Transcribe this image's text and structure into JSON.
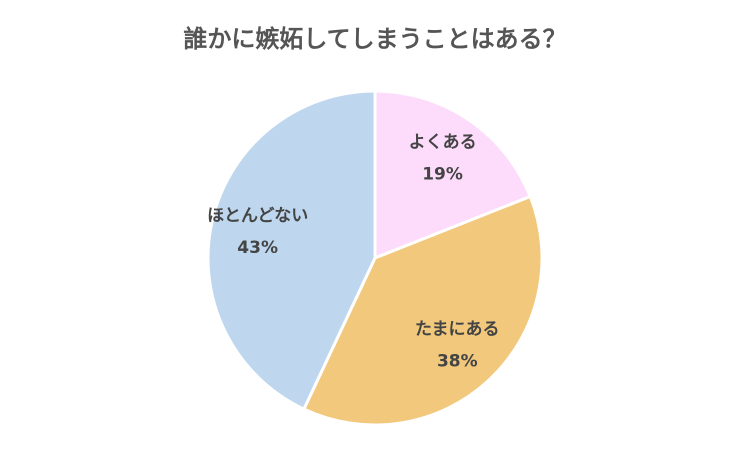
{
  "chart_data": {
    "type": "pie",
    "title": "誰かに嫉妬してしまうことはある？",
    "categories": [
      "よくある",
      "たまにある",
      "ほとんどない"
    ],
    "values": [
      19,
      38,
      43
    ],
    "value_labels": [
      "19%",
      "38%",
      "43%"
    ],
    "colors": [
      "#fddcfb",
      "#f1c87c",
      "#bed7ee"
    ]
  }
}
